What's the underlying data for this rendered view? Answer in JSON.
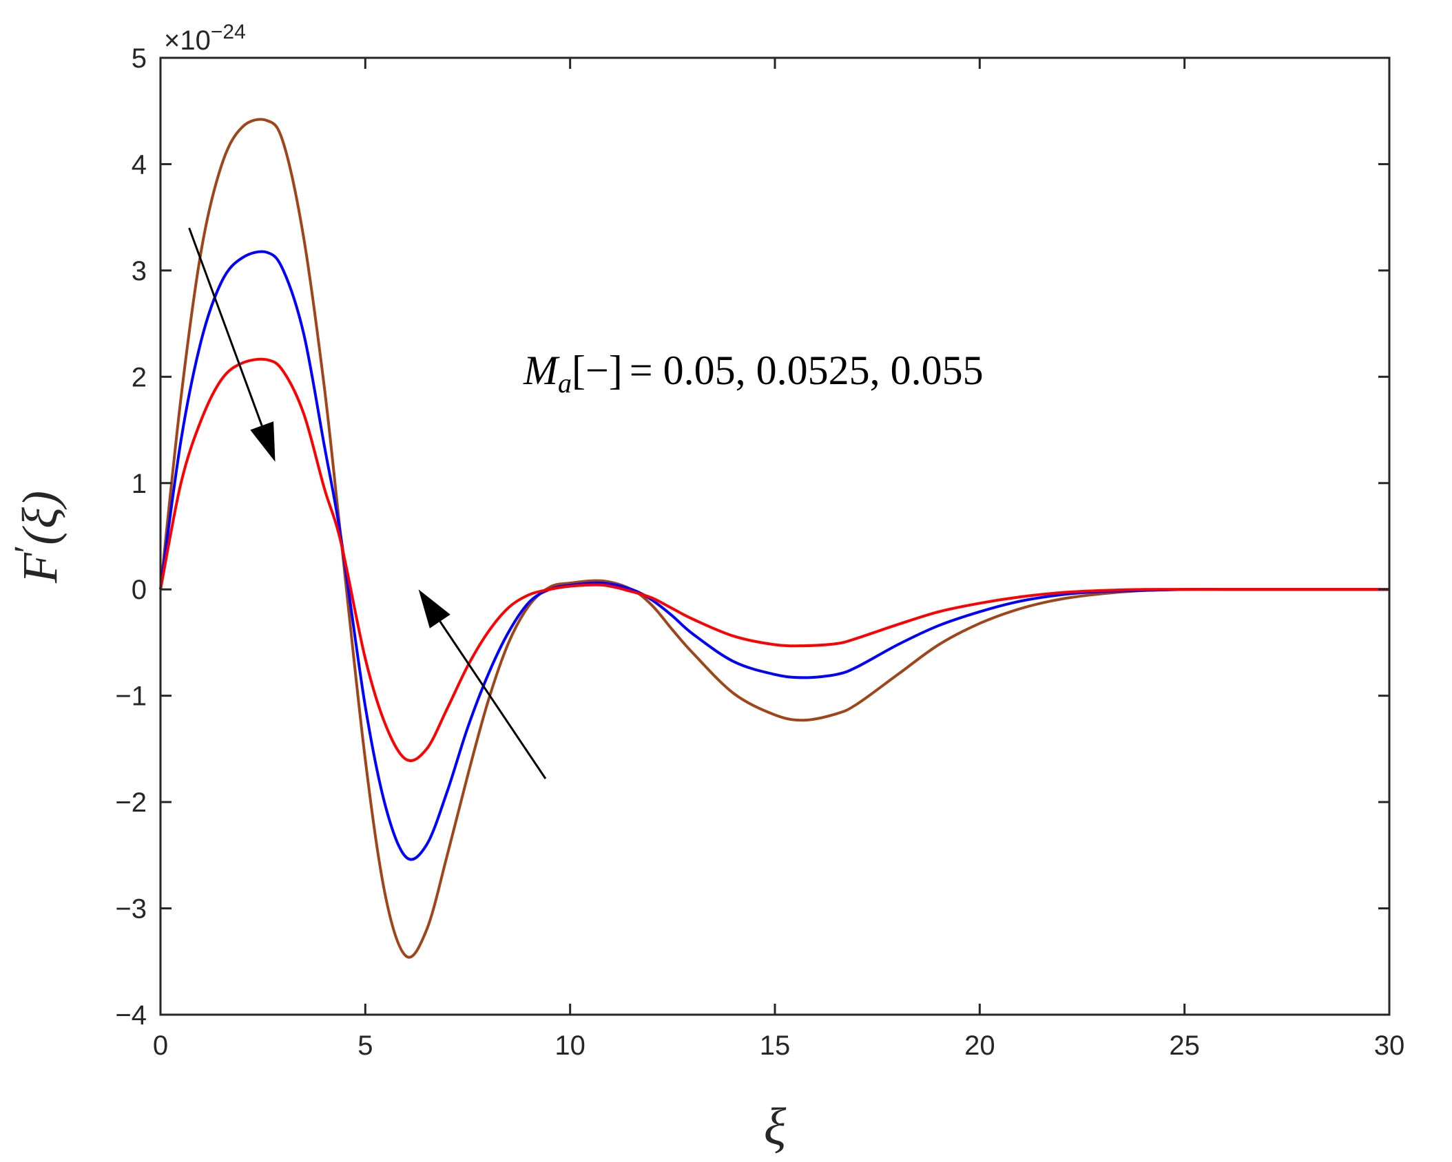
{
  "chart_data": {
    "type": "line",
    "title": "",
    "xlabel": "ξ",
    "ylabel_main": "F",
    "ylabel_prime": "′",
    "ylabel_arg": "(ξ)",
    "exponent_prefix": "×10",
    "exponent_power": "−24",
    "xlim": [
      0,
      30
    ],
    "ylim": [
      -4,
      5
    ],
    "xticks": [
      0,
      5,
      10,
      15,
      20,
      25,
      30
    ],
    "yticks": [
      -4,
      -3,
      -2,
      -1,
      0,
      1,
      2,
      3,
      4,
      5
    ],
    "xtick_labels": [
      "0",
      "5",
      "10",
      "15",
      "20",
      "25",
      "30"
    ],
    "ytick_labels": [
      "−4",
      "−3",
      "−2",
      "−1",
      "0",
      "1",
      "2",
      "3",
      "4",
      "5"
    ],
    "grid": false,
    "annotation": {
      "var": "M",
      "sub": "a",
      "bracket": "[−]",
      "values": "= 0.05, 0.0525, 0.055"
    },
    "arrows": [
      {
        "from": [
          0.7,
          3.4
        ],
        "to": [
          2.8,
          1.2
        ]
      },
      {
        "from": [
          9.4,
          -1.78
        ],
        "to": [
          6.3,
          0.0
        ]
      }
    ],
    "series": [
      {
        "color": "#a0441a",
        "x": [
          0,
          0.5,
          1,
          1.5,
          2,
          2.6,
          3,
          3.5,
          4,
          4.4,
          5,
          5.5,
          6,
          6.5,
          7,
          7.5,
          8,
          8.5,
          9,
          9.5,
          10,
          10.8,
          11.5,
          12,
          12.5,
          13,
          14,
          15,
          15.7,
          16.5,
          17,
          18,
          19,
          20,
          21,
          22,
          23,
          24,
          25,
          26,
          27,
          28,
          29,
          30
        ],
        "y": [
          0,
          1.8,
          3.2,
          4.0,
          4.35,
          4.41,
          4.2,
          3.3,
          1.9,
          0.5,
          -1.6,
          -2.9,
          -3.45,
          -3.2,
          -2.5,
          -1.75,
          -1.05,
          -0.5,
          -0.15,
          0.02,
          0.06,
          0.08,
          0.0,
          -0.15,
          -0.38,
          -0.6,
          -0.98,
          -1.18,
          -1.23,
          -1.17,
          -1.08,
          -0.8,
          -0.52,
          -0.32,
          -0.18,
          -0.09,
          -0.04,
          -0.01,
          0.0,
          0.0,
          0.0,
          0.0,
          0.0,
          0.0
        ]
      },
      {
        "color": "#0000ff",
        "x": [
          0,
          0.5,
          1,
          1.5,
          2,
          2.6,
          3,
          3.5,
          4,
          4.4,
          5,
          5.5,
          6,
          6.5,
          7,
          7.5,
          8,
          8.5,
          9,
          9.5,
          10,
          10.8,
          11.5,
          12,
          12.5,
          13,
          14,
          15,
          15.7,
          16.5,
          17,
          18,
          19,
          20,
          21,
          22,
          23,
          24,
          25,
          26,
          27,
          28,
          29,
          30
        ],
        "y": [
          0,
          1.4,
          2.35,
          2.9,
          3.12,
          3.17,
          3.0,
          2.4,
          1.35,
          0.5,
          -1.1,
          -2.05,
          -2.52,
          -2.4,
          -1.9,
          -1.3,
          -0.8,
          -0.4,
          -0.12,
          0.0,
          0.04,
          0.06,
          0.0,
          -0.1,
          -0.25,
          -0.42,
          -0.68,
          -0.8,
          -0.83,
          -0.8,
          -0.73,
          -0.52,
          -0.34,
          -0.21,
          -0.11,
          -0.05,
          -0.02,
          -0.01,
          0.0,
          0.0,
          0.0,
          0.0,
          0.0,
          0.0
        ]
      },
      {
        "color": "#ff0000",
        "x": [
          0,
          0.5,
          1,
          1.5,
          2,
          2.6,
          3,
          3.5,
          4,
          4.4,
          5,
          5.5,
          6,
          6.5,
          7,
          7.5,
          8,
          8.5,
          9,
          9.5,
          10,
          10.8,
          11.5,
          12,
          12.5,
          13,
          14,
          15,
          15.7,
          16.5,
          17,
          18,
          19,
          20,
          21,
          22,
          23,
          24,
          25,
          26,
          27,
          28,
          29,
          30
        ],
        "y": [
          0,
          1.0,
          1.6,
          1.98,
          2.13,
          2.16,
          2.05,
          1.65,
          0.95,
          0.45,
          -0.65,
          -1.28,
          -1.6,
          -1.5,
          -1.12,
          -0.72,
          -0.4,
          -0.17,
          -0.05,
          0.0,
          0.03,
          0.04,
          -0.02,
          -0.08,
          -0.18,
          -0.28,
          -0.44,
          -0.52,
          -0.53,
          -0.51,
          -0.46,
          -0.33,
          -0.21,
          -0.13,
          -0.07,
          -0.03,
          -0.01,
          0.0,
          0.0,
          0.0,
          0.0,
          0.0,
          0.0,
          0.0
        ]
      }
    ]
  }
}
